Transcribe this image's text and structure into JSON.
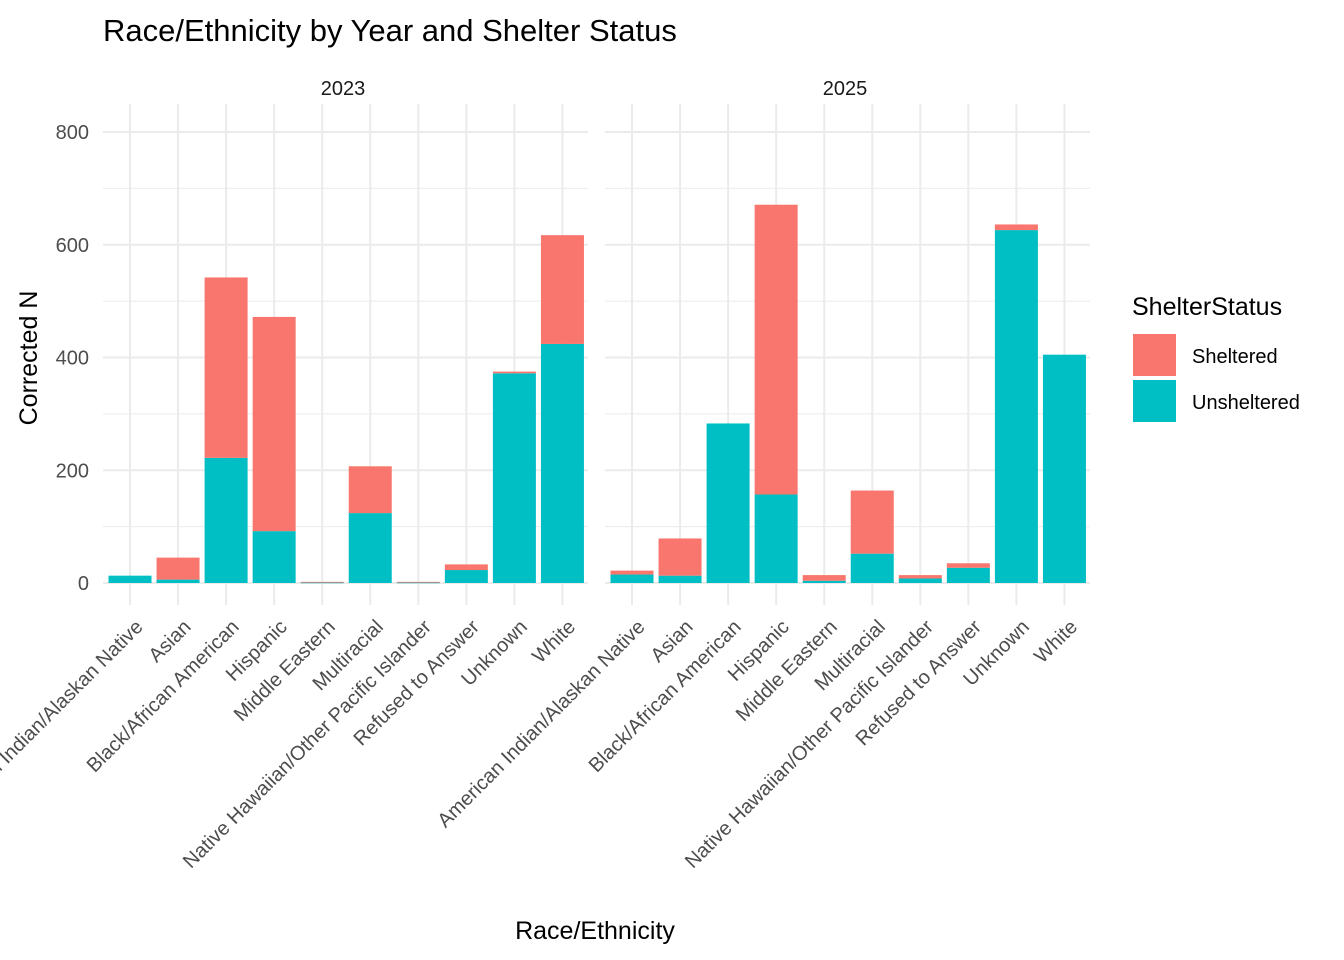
{
  "chart_data": {
    "type": "bar",
    "stacked": true,
    "title": "Race/Ethnicity by Year and Shelter Status",
    "xlabel": "Race/Ethnicity",
    "ylabel": "Corrected N",
    "ylim": [
      0,
      800
    ],
    "yticks": [
      "0",
      "200",
      "400",
      "600",
      "800"
    ],
    "grid": true,
    "legend": {
      "title": "ShelterStatus",
      "position": "right",
      "items": [
        {
          "name": "Sheltered",
          "color": "#F8766D"
        },
        {
          "name": "Unsheltered",
          "color": "#00BFC4"
        }
      ]
    },
    "categories": [
      "American Indian/Alaskan Native",
      "Asian",
      "Black/African American",
      "Hispanic",
      "Middle Eastern",
      "Multiracial",
      "Native Hawaiian/Other Pacific Islander",
      "Refused to Answer",
      "Unknown",
      "White"
    ],
    "panels": [
      {
        "label": "2023",
        "series": [
          {
            "name": "Sheltered",
            "values": [
              0,
              39,
              320,
              380,
              1,
              83,
              1,
              10,
              3,
              193
            ]
          },
          {
            "name": "Unsheltered",
            "values": [
              13,
              6,
              222,
              92,
              1,
              124,
              1,
              23,
              372,
              424
            ]
          }
        ]
      },
      {
        "label": "2025",
        "series": [
          {
            "name": "Sheltered",
            "values": [
              7,
              66,
              0,
              514,
              10,
              112,
              6,
              8,
              10,
              0
            ]
          },
          {
            "name": "Unsheltered",
            "values": [
              15,
              13,
              283,
              157,
              4,
              52,
              8,
              27,
              626,
              405
            ]
          }
        ]
      }
    ]
  }
}
